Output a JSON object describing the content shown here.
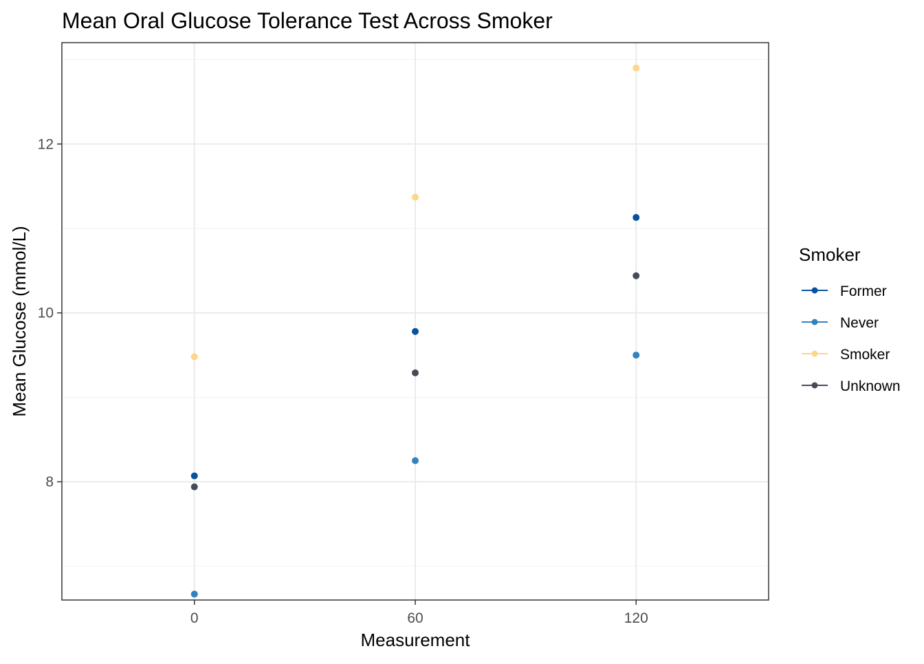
{
  "chart_data": {
    "type": "scatter",
    "title": "Mean Oral Glucose Tolerance Test Across Smoker",
    "xlabel": "Measurement",
    "ylabel": "Mean Glucose (mmol/L)",
    "x": [
      0,
      60,
      120
    ],
    "x_ticks": [
      "0",
      "60",
      "120"
    ],
    "y_ticks": [
      "8",
      "10",
      "12"
    ],
    "xlim": [
      -36,
      156
    ],
    "ylim": [
      6.6,
      13.2
    ],
    "grid": true,
    "legend": {
      "title": "Smoker",
      "position": "right"
    },
    "series": [
      {
        "name": "Former",
        "color": "#08519c",
        "values": [
          8.07,
          9.78,
          11.13
        ]
      },
      {
        "name": "Never",
        "color": "#3182bd",
        "values": [
          6.67,
          8.25,
          9.5
        ]
      },
      {
        "name": "Smoker",
        "color": "#fdd58b",
        "values": [
          9.48,
          11.37,
          12.9
        ]
      },
      {
        "name": "Unknown",
        "color": "#454c58",
        "values": [
          7.94,
          9.29,
          10.44
        ]
      }
    ]
  }
}
